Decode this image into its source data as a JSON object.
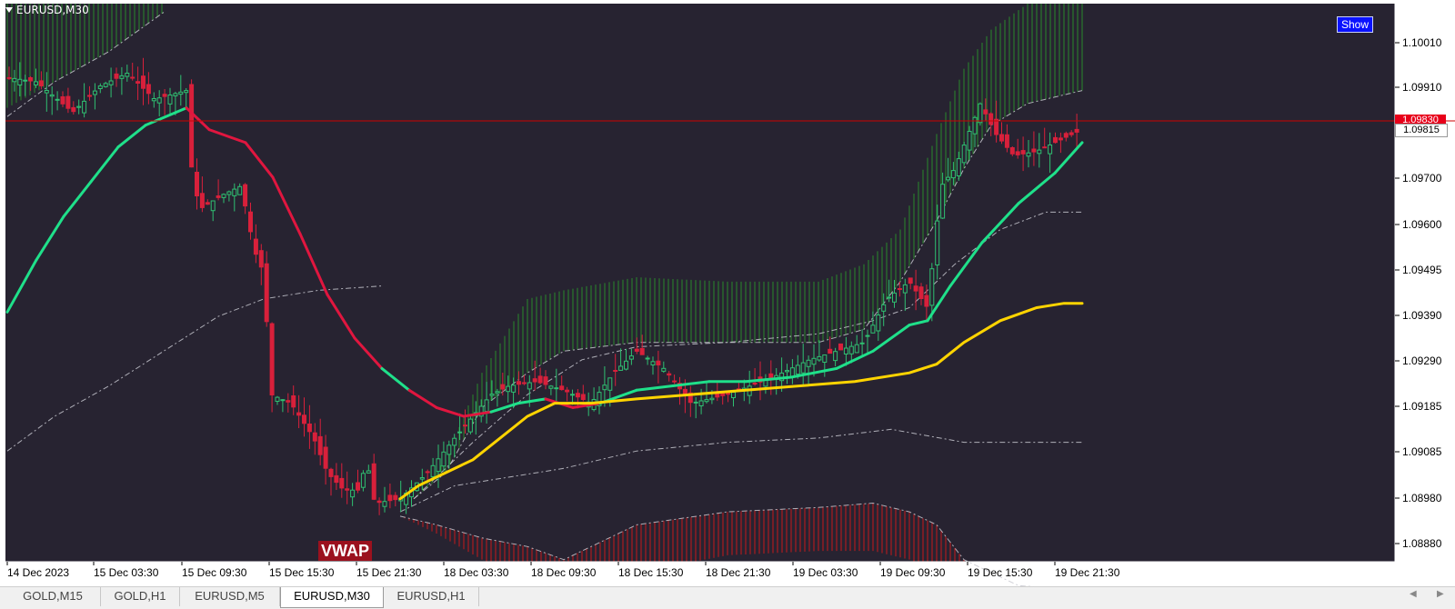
{
  "chart_data": {
    "type": "candlestick",
    "symbol": "EURUSD,M30",
    "y_ticks": [
      "1.10010",
      "1.09910",
      "1.09815",
      "1.09700",
      "1.09600",
      "1.09495",
      "1.09390",
      "1.09290",
      "1.09185",
      "1.09085",
      "1.08980",
      "1.08880"
    ],
    "x_ticks": [
      "14 Dec 2023",
      "15 Dec 03:30",
      "15 Dec 09:30",
      "15 Dec 15:30",
      "15 Dec 21:30",
      "18 Dec 03:30",
      "18 Dec 09:30",
      "18 Dec 15:30",
      "18 Dec 21:30",
      "19 Dec 03:30",
      "19 Dec 09:30",
      "19 Dec 15:30",
      "19 Dec 21:30"
    ],
    "ylim": [
      1.0883,
      1.1008
    ],
    "current_price": "1.09815",
    "hidden_price": "1.09830",
    "colors": {
      "bull": "#2fbf71",
      "bear": "#d8203b",
      "ma_up": "#1fe08a",
      "ma_down": "#e0163f",
      "vwap": "#ffd400",
      "upper_band": "#2a8a2a",
      "lower_band": "#c41a1a",
      "price_line": "#cc0000",
      "background": "#272331"
    }
  },
  "symbol_label": "EURUSD,M30",
  "show_button": "Show",
  "vwap_label": "VWAP",
  "tabs": [
    "GOLD,M15",
    "GOLD,H1",
    "EURUSD,M5",
    "EURUSD,M30",
    "EURUSD,H1"
  ],
  "active_tab": "EURUSD,M30",
  "icons": {
    "scroll_left": "chevron-left-icon",
    "scroll_right": "chevron-right-icon",
    "menu": "triangle-down-icon"
  }
}
